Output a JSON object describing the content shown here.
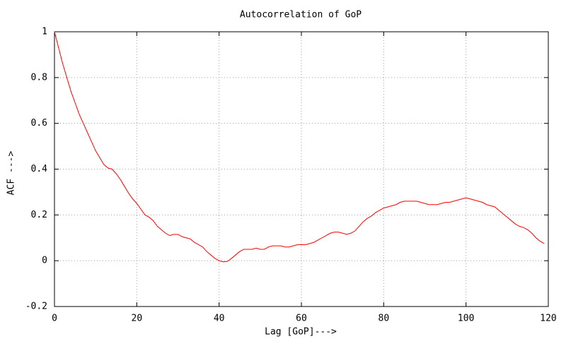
{
  "chart_data": {
    "type": "line",
    "title": "Autocorrelation of GoP",
    "x_label": "Lag [GoP]--->",
    "y_label": "ACF --->",
    "x": [
      0,
      1,
      2,
      3,
      4,
      5,
      6,
      7,
      8,
      9,
      10,
      11,
      12,
      13,
      14,
      15,
      16,
      17,
      18,
      19,
      20,
      21,
      22,
      23,
      24,
      25,
      26,
      27,
      28,
      29,
      30,
      31,
      32,
      33,
      34,
      35,
      36,
      37,
      38,
      39,
      40,
      41,
      42,
      43,
      44,
      45,
      46,
      47,
      48,
      49,
      50,
      51,
      52,
      53,
      54,
      55,
      56,
      57,
      58,
      59,
      60,
      61,
      62,
      63,
      64,
      65,
      66,
      67,
      68,
      69,
      70,
      71,
      72,
      73,
      74,
      75,
      76,
      77,
      78,
      79,
      80,
      81,
      82,
      83,
      84,
      85,
      86,
      87,
      88,
      89,
      90,
      91,
      92,
      93,
      94,
      95,
      96,
      97,
      98,
      99,
      100,
      101,
      102,
      103,
      104,
      105,
      106,
      107,
      108,
      109,
      110,
      111,
      112,
      113,
      114,
      115,
      116,
      117,
      118,
      119
    ],
    "series": [
      {
        "color": "#ff0000",
        "values": [
          1.0,
          0.93,
          0.86,
          0.8,
          0.74,
          0.69,
          0.64,
          0.6,
          0.56,
          0.52,
          0.48,
          0.45,
          0.42,
          0.405,
          0.4,
          0.38,
          0.355,
          0.325,
          0.295,
          0.27,
          0.25,
          0.225,
          0.2,
          0.19,
          0.175,
          0.15,
          0.135,
          0.12,
          0.11,
          0.115,
          0.115,
          0.105,
          0.1,
          0.095,
          0.08,
          0.07,
          0.06,
          0.04,
          0.025,
          0.01,
          0.0,
          -0.005,
          -0.003,
          0.01,
          0.025,
          0.04,
          0.05,
          0.05,
          0.05,
          0.055,
          0.05,
          0.05,
          0.06,
          0.065,
          0.065,
          0.065,
          0.06,
          0.06,
          0.065,
          0.07,
          0.07,
          0.07,
          0.075,
          0.08,
          0.09,
          0.1,
          0.11,
          0.12,
          0.125,
          0.125,
          0.12,
          0.115,
          0.12,
          0.13,
          0.15,
          0.17,
          0.185,
          0.195,
          0.21,
          0.22,
          0.23,
          0.235,
          0.24,
          0.245,
          0.255,
          0.26,
          0.26,
          0.26,
          0.26,
          0.255,
          0.25,
          0.245,
          0.245,
          0.245,
          0.25,
          0.255,
          0.255,
          0.26,
          0.265,
          0.27,
          0.275,
          0.27,
          0.265,
          0.26,
          0.255,
          0.245,
          0.24,
          0.235,
          0.22,
          0.205,
          0.19,
          0.175,
          0.16,
          0.15,
          0.145,
          0.135,
          0.12,
          0.1,
          0.085,
          0.075
        ]
      }
    ],
    "xlim": [
      0,
      120
    ],
    "xticks": [
      0,
      20,
      40,
      60,
      80,
      100,
      120
    ],
    "ylim": [
      -0.2,
      1
    ],
    "yticks": [
      -0.2,
      0,
      0.2,
      0.4,
      0.6,
      0.8,
      1
    ],
    "grid": true
  }
}
